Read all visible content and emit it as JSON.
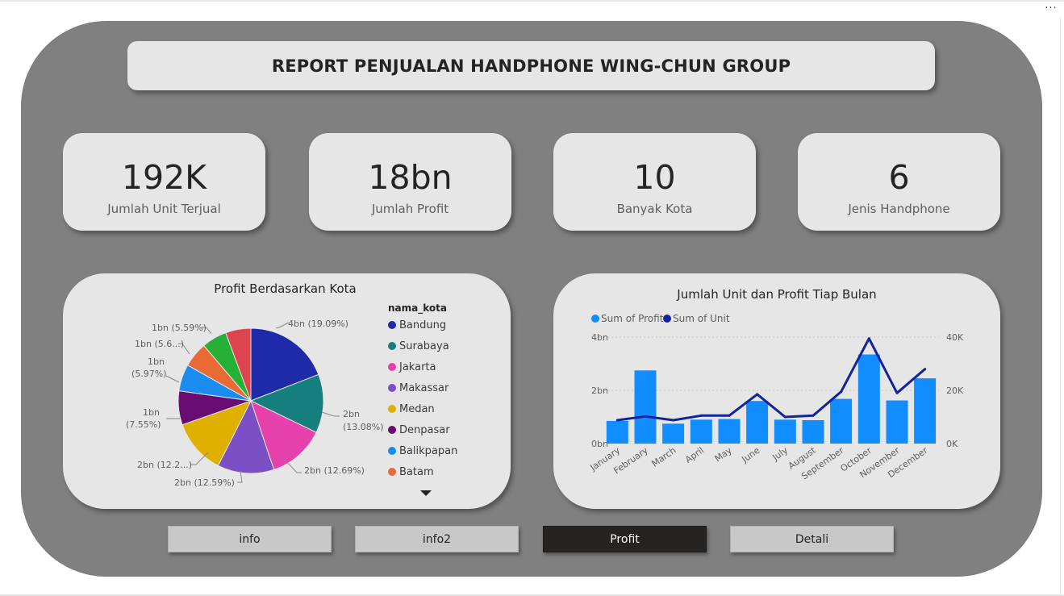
{
  "menu": {
    "more_label": "···"
  },
  "header": {
    "title": "REPORT PENJUALAN HANDPHONE WING-CHUN GROUP"
  },
  "kpis": [
    {
      "value": "192K",
      "label": "Jumlah Unit Terjual"
    },
    {
      "value": "18bn",
      "label": "Jumlah Profit"
    },
    {
      "value": "10",
      "label": "Banyak Kota"
    },
    {
      "value": "6",
      "label": "Jenis Handphone"
    }
  ],
  "pie": {
    "title": "Profit Berdasarkan Kota",
    "legend_title": "nama_kota",
    "legend_more_icon": "triangle-down-icon",
    "slice_labels": {
      "bandung": "4bn (19.09%)",
      "surabaya_a": "2bn",
      "surabaya_b": "(13.08%)",
      "jakarta": "2bn (12.69%)",
      "makassar": "2bn (12.59%)",
      "medan": "2bn (12.2...)",
      "denpasar_a": "1bn",
      "denpasar_b": "(7.55%)",
      "balikpapan_a": "1bn",
      "balikpapan_b": "(5.97%)",
      "batam": "1bn (5.6...)",
      "slice9": "1bn (5.59%)"
    }
  },
  "chart_data": [
    {
      "type": "pie",
      "title": "Profit Berdasarkan Kota",
      "legend_title": "nama_kota",
      "categories": [
        "Bandung",
        "Surabaya",
        "Jakarta",
        "Makassar",
        "Medan",
        "Denpasar",
        "Balikpapan",
        "Batam",
        "",
        ""
      ],
      "values": [
        19.09,
        13.08,
        12.69,
        12.59,
        12.2,
        7.55,
        5.97,
        5.6,
        5.59,
        5.64
      ],
      "colors": [
        "#1f2aa8",
        "#177e7e",
        "#e540ab",
        "#7c4fc4",
        "#dfb000",
        "#690c72",
        "#1a8cf0",
        "#ea6a36",
        "#27b036",
        "#dc4450"
      ],
      "legend_placement": "right"
    },
    {
      "type": "bar+line",
      "title": "Jumlah Unit dan Profit Tiap Bulan",
      "categories": [
        "January",
        "February",
        "March",
        "April",
        "May",
        "June",
        "July",
        "August",
        "September",
        "October",
        "November",
        "December"
      ],
      "series": [
        {
          "name": "Sum of Profit",
          "type": "bar",
          "axis": "left",
          "color": "#118dff",
          "values": [
            0.85,
            2.75,
            0.75,
            0.9,
            0.92,
            1.6,
            0.9,
            0.88,
            1.68,
            3.35,
            1.62,
            2.45
          ]
        },
        {
          "name": "Sum of Unit",
          "type": "line",
          "axis": "right",
          "color": "#12239e",
          "values": [
            8800,
            10200,
            8800,
            10500,
            10500,
            18500,
            10000,
            10500,
            19500,
            39500,
            19000,
            28000
          ]
        }
      ],
      "y_left": {
        "ticks": [
          "0bn",
          "2bn",
          "4bn"
        ],
        "range": [
          0,
          4
        ]
      },
      "y_right": {
        "ticks": [
          "0K",
          "20K",
          "40K"
        ],
        "range": [
          0,
          40000
        ]
      },
      "grid": true,
      "legend_placement": "top-left"
    }
  ],
  "combo": {
    "title": "Jumlah Unit dan Profit Tiap Bulan"
  },
  "nav": {
    "buttons": [
      "info",
      "info2",
      "Profit",
      "Detali"
    ],
    "active_index": 2
  }
}
